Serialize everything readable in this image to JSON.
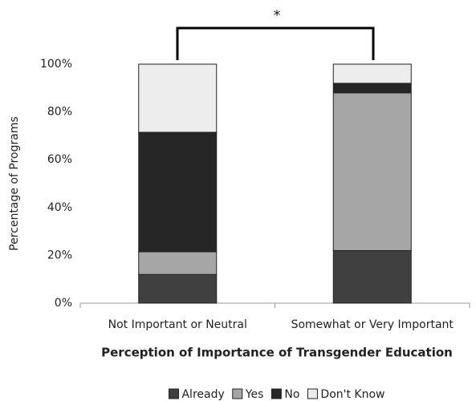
{
  "chart_data": {
    "type": "stacked_bar",
    "annotation": "*",
    "x_label": "Perception of Importance of Transgender Education",
    "y_label": "Percentage of Programs",
    "categories": [
      "Not Important or Neutral",
      "Somewhat or Very Important"
    ],
    "series": [
      {
        "name": "Already",
        "color": "#404040",
        "values": [
          12,
          22
        ]
      },
      {
        "name": "Yes",
        "color": "#a6a6a6",
        "values": [
          9.5,
          66
        ]
      },
      {
        "name": "No",
        "color": "#262626",
        "values": [
          50,
          4
        ]
      },
      {
        "name": "Don't Know",
        "color": "#ededed",
        "values": [
          28.5,
          8
        ]
      }
    ],
    "ylim": [
      0,
      100
    ],
    "yticks": [
      {
        "value": 0,
        "label": "0%"
      },
      {
        "value": 20,
        "label": "20%"
      },
      {
        "value": 40,
        "label": "40%"
      },
      {
        "value": 60,
        "label": "60%"
      },
      {
        "value": 80,
        "label": "80%"
      },
      {
        "value": 100,
        "label": "100%"
      }
    ],
    "legend": "bottom"
  }
}
